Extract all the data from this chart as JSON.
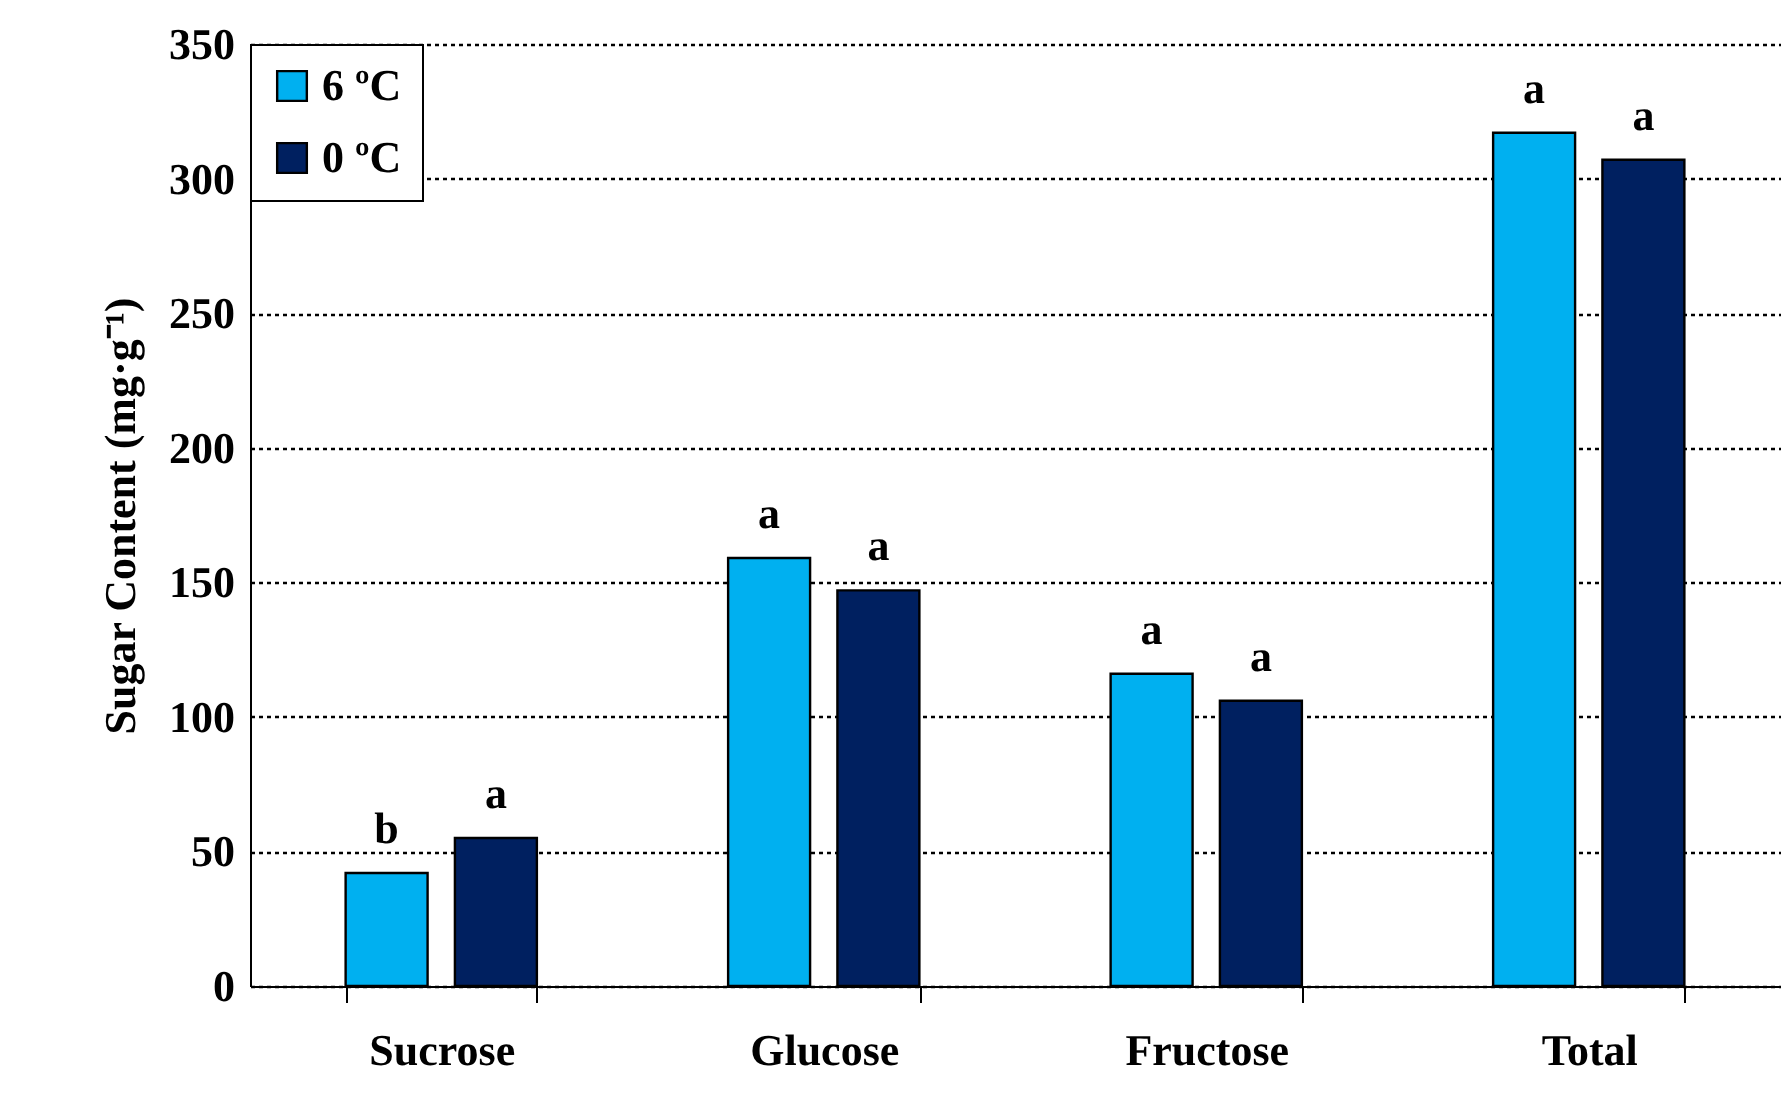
{
  "chart_data": {
    "type": "bar",
    "ylabel": "Sugar Content (mg·g⁻¹)",
    "categories": [
      "Sucrose",
      "Glucose",
      "Fructose",
      "Total"
    ],
    "series": [
      {
        "name": "6 ºC",
        "color": "#00b0f0",
        "values": [
          42,
          159,
          116,
          317
        ],
        "value_labels": [
          "b",
          "a",
          "a",
          "a"
        ]
      },
      {
        "name": "0 ºC",
        "color": "#002060",
        "values": [
          55,
          147,
          106,
          307
        ],
        "value_labels": [
          "a",
          "a",
          "a",
          "a"
        ]
      }
    ],
    "ylim": [
      0,
      350
    ],
    "yticks": [
      0,
      50,
      100,
      150,
      200,
      250,
      300,
      350
    ],
    "grid": "y",
    "legend": "top left"
  }
}
